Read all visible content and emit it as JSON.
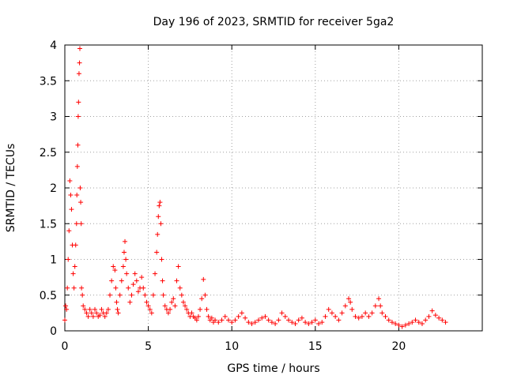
{
  "chart_data": {
    "type": "scatter",
    "title": "Day 196 of 2023, SRMTID for receiver 5ga2",
    "xlabel": "GPS time / hours",
    "ylabel": "SRMTID / TECUs",
    "xlim": [
      0,
      25
    ],
    "ylim": [
      0,
      4
    ],
    "xticks": [
      "0",
      "5",
      "10",
      "15",
      "20"
    ],
    "yticks": [
      "0",
      "0.5",
      "1",
      "1.5",
      "2",
      "2.5",
      "3",
      "3.5",
      "4"
    ],
    "grid": true,
    "marker": "+",
    "color": "#ff0000",
    "series": [
      {
        "name": "SRMTID",
        "x": [
          0.0,
          0.05,
          0.1,
          0.15,
          0.2,
          0.25,
          0.3,
          0.35,
          0.4,
          0.45,
          0.5,
          0.55,
          0.6,
          0.65,
          0.7,
          0.72,
          0.75,
          0.78,
          0.8,
          0.82,
          0.85,
          0.88,
          0.9,
          0.92,
          0.95,
          0.98,
          1.0,
          1.05,
          1.1,
          1.2,
          1.3,
          1.4,
          1.5,
          1.6,
          1.7,
          1.8,
          1.9,
          2.0,
          2.1,
          2.2,
          2.3,
          2.4,
          2.5,
          2.6,
          2.7,
          2.8,
          2.9,
          3.0,
          3.05,
          3.1,
          3.15,
          3.2,
          3.3,
          3.4,
          3.5,
          3.55,
          3.6,
          3.65,
          3.7,
          3.8,
          3.9,
          4.0,
          4.1,
          4.2,
          4.3,
          4.4,
          4.5,
          4.6,
          4.7,
          4.8,
          4.9,
          5.0,
          5.1,
          5.2,
          5.3,
          5.4,
          5.5,
          5.55,
          5.6,
          5.65,
          5.7,
          5.75,
          5.8,
          5.85,
          5.9,
          6.0,
          6.1,
          6.2,
          6.3,
          6.4,
          6.5,
          6.6,
          6.7,
          6.8,
          6.9,
          7.0,
          7.1,
          7.2,
          7.3,
          7.4,
          7.5,
          7.6,
          7.7,
          7.8,
          7.9,
          8.0,
          8.1,
          8.2,
          8.3,
          8.4,
          8.5,
          8.6,
          8.7,
          8.8,
          8.9,
          9.0,
          9.2,
          9.4,
          9.6,
          9.8,
          10.0,
          10.2,
          10.4,
          10.6,
          10.8,
          11.0,
          11.2,
          11.4,
          11.6,
          11.8,
          12.0,
          12.2,
          12.4,
          12.6,
          12.8,
          13.0,
          13.2,
          13.4,
          13.6,
          13.8,
          14.0,
          14.2,
          14.4,
          14.6,
          14.8,
          15.0,
          15.2,
          15.4,
          15.6,
          15.8,
          16.0,
          16.2,
          16.4,
          16.6,
          16.8,
          17.0,
          17.1,
          17.2,
          17.4,
          17.6,
          17.8,
          18.0,
          18.2,
          18.4,
          18.6,
          18.8,
          18.9,
          19.0,
          19.2,
          19.4,
          19.6,
          19.8,
          20.0,
          20.2,
          20.4,
          20.6,
          20.8,
          21.0,
          21.2,
          21.4,
          21.6,
          21.8,
          22.0,
          22.2,
          22.4,
          22.6,
          22.8
        ],
        "y": [
          0.15,
          0.35,
          0.3,
          0.6,
          1.0,
          1.4,
          2.1,
          1.9,
          1.7,
          1.2,
          0.8,
          0.6,
          0.9,
          1.2,
          1.5,
          1.9,
          2.3,
          2.6,
          3.0,
          3.2,
          3.6,
          3.75,
          3.95,
          2.0,
          1.8,
          1.5,
          0.6,
          0.5,
          0.35,
          0.3,
          0.25,
          0.2,
          0.3,
          0.25,
          0.2,
          0.3,
          0.25,
          0.2,
          0.22,
          0.3,
          0.25,
          0.2,
          0.25,
          0.3,
          0.5,
          0.7,
          0.9,
          0.85,
          0.6,
          0.4,
          0.3,
          0.25,
          0.5,
          0.7,
          0.9,
          1.1,
          1.25,
          1.0,
          0.8,
          0.6,
          0.4,
          0.5,
          0.65,
          0.8,
          0.7,
          0.55,
          0.6,
          0.75,
          0.6,
          0.5,
          0.4,
          0.35,
          0.3,
          0.25,
          0.5,
          0.8,
          1.1,
          1.35,
          1.6,
          1.75,
          1.8,
          1.5,
          1.0,
          0.7,
          0.5,
          0.35,
          0.3,
          0.25,
          0.3,
          0.4,
          0.45,
          0.35,
          0.7,
          0.9,
          0.6,
          0.5,
          0.4,
          0.35,
          0.3,
          0.25,
          0.2,
          0.25,
          0.2,
          0.18,
          0.15,
          0.2,
          0.3,
          0.45,
          0.72,
          0.5,
          0.3,
          0.2,
          0.15,
          0.18,
          0.12,
          0.15,
          0.12,
          0.15,
          0.2,
          0.15,
          0.12,
          0.15,
          0.2,
          0.25,
          0.18,
          0.12,
          0.1,
          0.12,
          0.15,
          0.18,
          0.2,
          0.15,
          0.12,
          0.1,
          0.15,
          0.25,
          0.2,
          0.15,
          0.12,
          0.1,
          0.15,
          0.18,
          0.12,
          0.1,
          0.12,
          0.15,
          0.1,
          0.12,
          0.2,
          0.3,
          0.25,
          0.2,
          0.15,
          0.25,
          0.35,
          0.45,
          0.4,
          0.3,
          0.2,
          0.18,
          0.2,
          0.25,
          0.2,
          0.25,
          0.35,
          0.45,
          0.35,
          0.25,
          0.2,
          0.15,
          0.12,
          0.1,
          0.08,
          0.06,
          0.08,
          0.1,
          0.12,
          0.15,
          0.12,
          0.1,
          0.15,
          0.2,
          0.28,
          0.22,
          0.18,
          0.15,
          0.12
        ]
      }
    ]
  }
}
